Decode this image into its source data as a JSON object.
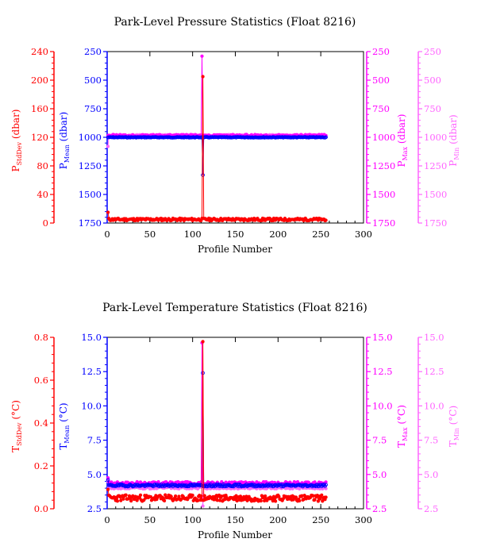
{
  "chart_data": [
    {
      "type": "line",
      "title": "Park-Level Pressure Statistics (Float 8216)",
      "xlabel": "Profile Number",
      "xlim": [
        0,
        300
      ],
      "xticks": [
        "0",
        "50",
        "100",
        "150",
        "200",
        "250",
        "300"
      ],
      "axes": [
        {
          "name": "stddev",
          "label_main": "P",
          "label_sub": "StdDev",
          "label_tail": " (dbar)",
          "color": "#ff0000",
          "lim": [
            0,
            240
          ],
          "ticks": [
            "0",
            "40",
            "80",
            "120",
            "160",
            "200",
            "240"
          ]
        },
        {
          "name": "mean",
          "label_main": "P",
          "label_sub": "Mean",
          "label_tail": " (dbar)",
          "color": "#0000ff",
          "lim": [
            1750,
            250
          ],
          "ticks": [
            "1750",
            "1500",
            "1250",
            "1000",
            "750",
            "500",
            "250"
          ]
        },
        {
          "name": "max",
          "label_main": "P",
          "label_sub": "Max",
          "label_tail": " (dbar)",
          "color": "#ff00ff",
          "lim": [
            1750,
            250
          ],
          "ticks": [
            "1750",
            "1500",
            "1250",
            "1000",
            "750",
            "500",
            "250"
          ]
        },
        {
          "name": "min",
          "label_main": "P",
          "label_sub": "Min",
          "label_tail": " (dbar)",
          "color": "#ff66ff",
          "lim": [
            1750,
            250
          ],
          "ticks": [
            "1750",
            "1500",
            "1250",
            "1000",
            "750",
            "500",
            "250"
          ]
        }
      ],
      "series": [
        {
          "axis": "min",
          "color": "#ff66ff",
          "marker": "filled",
          "base": 985,
          "noise": 8,
          "first": 1080,
          "spike_x": 112,
          "spike_val": 1000,
          "npts": 256,
          "seed": 3
        },
        {
          "axis": "max",
          "color": "#ff00ff",
          "marker": "filled",
          "base": 985,
          "noise": 10,
          "first": 985,
          "spike_x": 111,
          "spike_val": 290,
          "npts": 256,
          "seed": 5
        },
        {
          "axis": "mean",
          "color": "#0000ff",
          "marker": "open",
          "base": 1000,
          "noise": 3,
          "first": 1000,
          "spike_x": 112,
          "spike_val": 1330,
          "npts": 256,
          "seed": 7
        },
        {
          "axis": "stddev",
          "color": "#ff0000",
          "marker": "filled",
          "base": 5,
          "noise": 1.8,
          "first": 15,
          "spike_x": 112,
          "spike_val": 205,
          "npts": 256,
          "seed": 11
        }
      ]
    },
    {
      "type": "line",
      "title": "Park-Level Temperature Statistics (Float 8216)",
      "xlabel": "Profile Number",
      "xlim": [
        0,
        300
      ],
      "xticks": [
        "0",
        "50",
        "100",
        "150",
        "200",
        "250",
        "300"
      ],
      "axes": [
        {
          "name": "stddev",
          "label_main": "T",
          "label_sub": "StdDev",
          "label_tail": " (°C)",
          "color": "#ff0000",
          "lim": [
            0,
            0.8
          ],
          "ticks": [
            "0.0",
            "0.2",
            "0.4",
            "0.6",
            "0.8"
          ]
        },
        {
          "name": "mean",
          "label_main": "T",
          "label_sub": "Mean",
          "label_tail": " (°C)",
          "color": "#0000ff",
          "lim": [
            2.5,
            15
          ],
          "ticks": [
            "2.5",
            "5.0",
            "7.5",
            "10.0",
            "12.5",
            "15.0"
          ]
        },
        {
          "name": "max",
          "label_main": "T",
          "label_sub": "Max",
          "label_tail": " (°C)",
          "color": "#ff00ff",
          "lim": [
            2.5,
            15
          ],
          "ticks": [
            "2.5",
            "5.0",
            "7.5",
            "10.0",
            "12.5",
            "15.0"
          ]
        },
        {
          "name": "min",
          "label_main": "T",
          "label_sub": "Min",
          "label_tail": " (°C)",
          "color": "#ff66ff",
          "lim": [
            2.5,
            15
          ],
          "ticks": [
            "2.5",
            "5.0",
            "7.5",
            "10.0",
            "12.5",
            "15.0"
          ]
        }
      ],
      "series": [
        {
          "axis": "min",
          "color": "#ff66ff",
          "marker": "filled",
          "base": 4.05,
          "noise": 0.1,
          "first": 4.5,
          "spike_x": 112,
          "spike_val": 2.7,
          "npts": 256,
          "seed": 13
        },
        {
          "axis": "max",
          "color": "#ff00ff",
          "marker": "filled",
          "base": 4.35,
          "noise": 0.12,
          "first": 4.75,
          "spike_x": 111,
          "spike_val": 14.6,
          "npts": 256,
          "seed": 17
        },
        {
          "axis": "mean",
          "color": "#0000ff",
          "marker": "open",
          "base": 4.2,
          "noise": 0.08,
          "first": 4.6,
          "spike_x": 112,
          "spike_val": 12.4,
          "npts": 256,
          "seed": 19
        },
        {
          "axis": "stddev",
          "color": "#ff0000",
          "marker": "filled",
          "base": 0.05,
          "noise": 0.015,
          "first": 0.09,
          "spike_x": 112,
          "spike_val": 0.78,
          "npts": 256,
          "seed": 23
        }
      ]
    }
  ]
}
